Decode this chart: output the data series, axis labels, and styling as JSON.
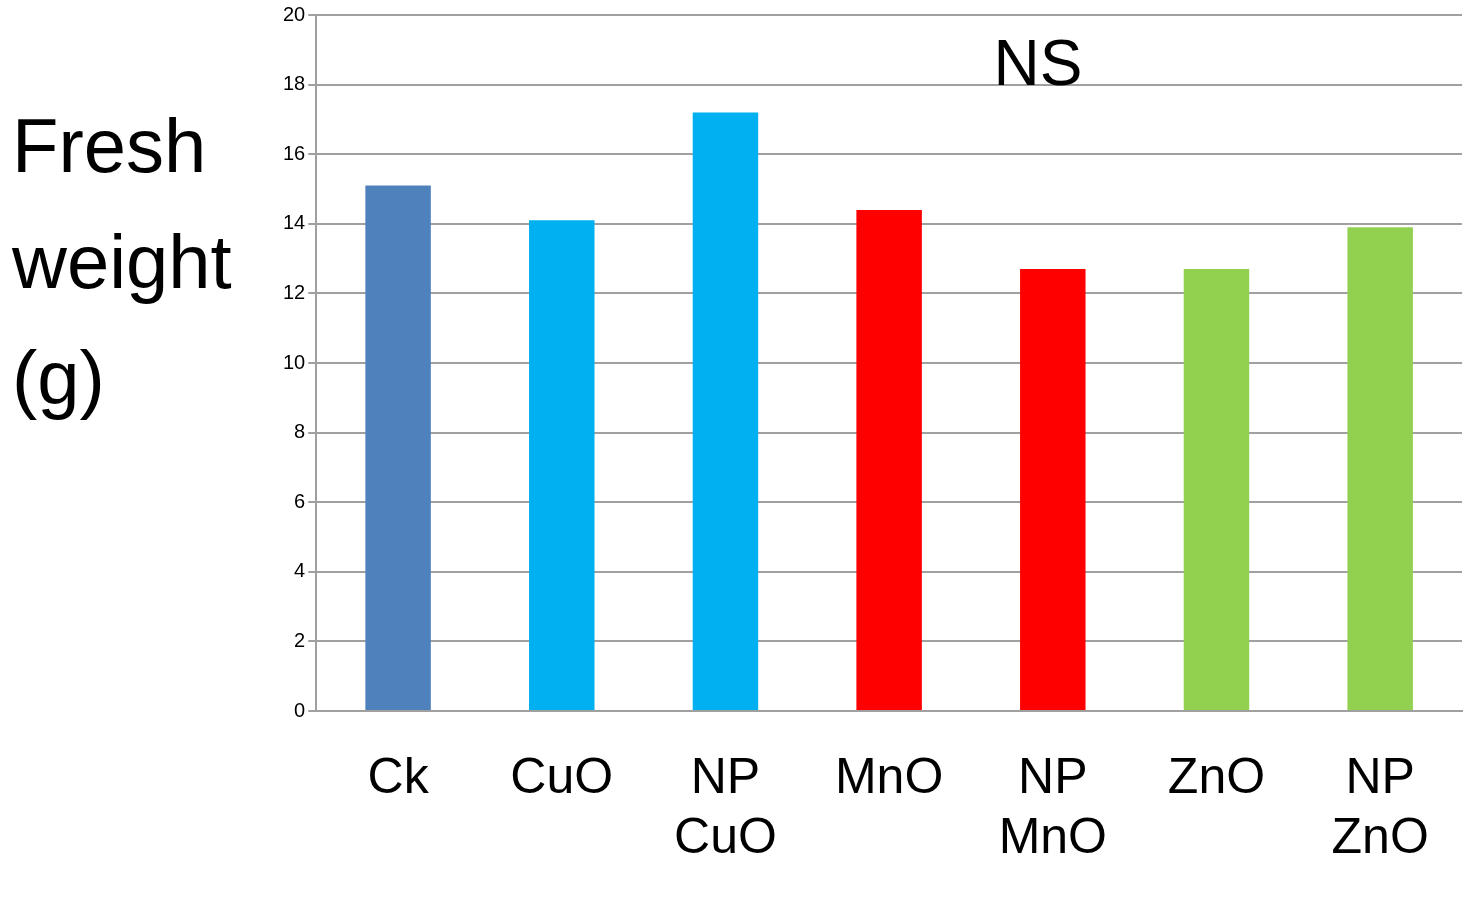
{
  "chart_data": {
    "type": "bar",
    "ylabel": "Fresh weight (g)",
    "annotations": [
      "NS"
    ],
    "categories": [
      "Ck",
      "CuO",
      "NP CuO",
      "MnO",
      "NP MnO",
      "ZnO",
      "NP ZnO"
    ],
    "values": [
      15.1,
      14.1,
      17.2,
      14.4,
      12.7,
      12.7,
      13.9
    ],
    "colors": [
      "#4f81bd",
      "#00b0f0",
      "#00b0f0",
      "#ff0000",
      "#ff0000",
      "#92d050",
      "#92d050"
    ],
    "ylim": [
      0,
      20
    ],
    "yticks": [
      0,
      2,
      4,
      6,
      8,
      10,
      12,
      14,
      16,
      18,
      20
    ],
    "grid": "y",
    "legend": false
  }
}
